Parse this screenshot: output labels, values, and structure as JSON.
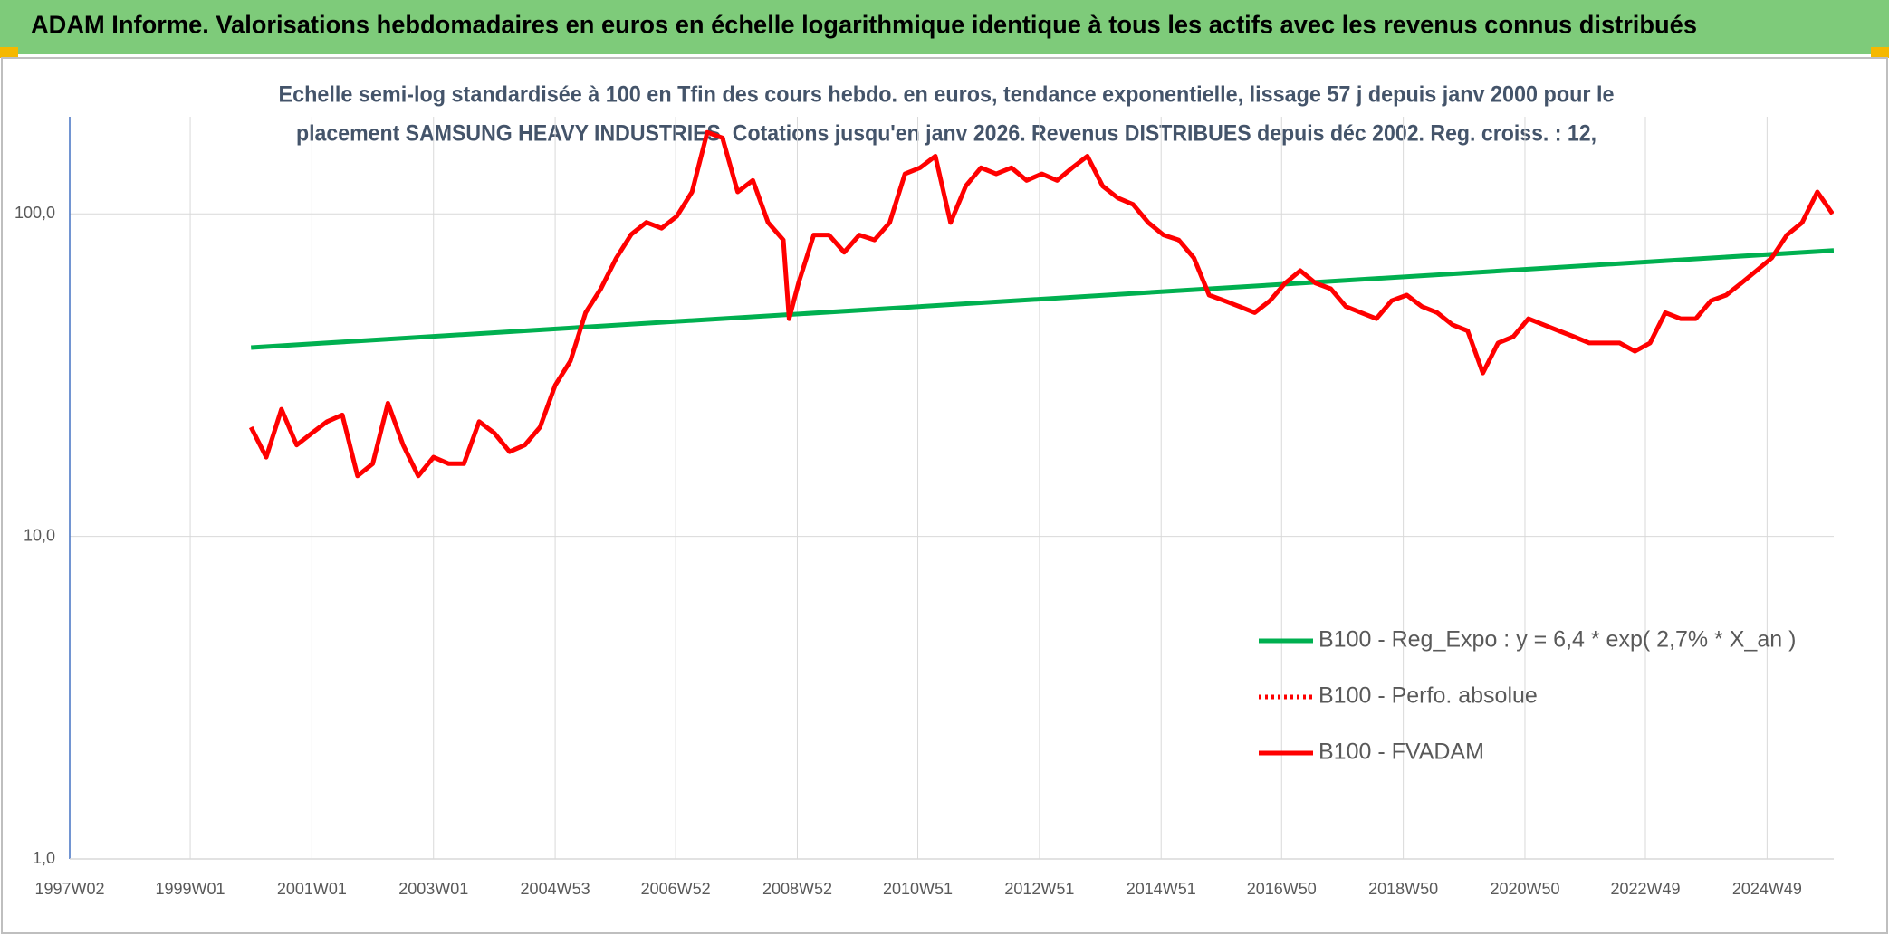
{
  "chart_data": {
    "type": "line",
    "title": "ADAM Informe. Valorisations hebdomadaires en euros en échelle logarithmique identique à tous les actifs avec les revenus connus distribués",
    "subtitle_lines": [
      "Echelle semi-log standardisée à 100 en Tfin des cours hebdo. en euros, tendance exponentielle, lissage 57 j depuis janv 2000 pour le",
      "placement SAMSUNG HEAVY INDUSTRIES. Cotations jusqu'en janv 2026. Revenus DISTRIBUES depuis déc 2002. Reg. croiss. : 12,"
    ],
    "log_scale": true,
    "grid": true,
    "legend": "lower right",
    "ylim": [
      1,
      200
    ],
    "yticks": [
      {
        "value": 1,
        "label": "1,0"
      },
      {
        "value": 10,
        "label": "10,0"
      },
      {
        "value": 100,
        "label": "100,0"
      }
    ],
    "xlim": [
      "1997W02",
      "2026W02"
    ],
    "xticks": [
      "1997W02",
      "1999W01",
      "2001W01",
      "2003W01",
      "2004W53",
      "2006W52",
      "2008W52",
      "2010W51",
      "2012W51",
      "2014W51",
      "2016W50",
      "2018W50",
      "2020W50",
      "2022W49",
      "2024W49"
    ],
    "series": [
      {
        "name": "B100 - Reg_Expo : y = 6,4 * exp( 2,7% *  X_an )",
        "color": "#00b050",
        "style": "solid",
        "x": [
          "2000W01",
          "2026W02"
        ],
        "values": [
          38.5,
          77
        ]
      },
      {
        "name": "B100 - Perfo. absolue",
        "color": "#ff0000",
        "style": "dotted"
      },
      {
        "name": "B100 - FVADAM",
        "color": "#ff0000",
        "style": "solid",
        "x": [
          "2000W01",
          "2000W14",
          "2000W27",
          "2000W40",
          "2001W01",
          "2001W14",
          "2001W27",
          "2001W40",
          "2002W01",
          "2002W14",
          "2002W27",
          "2002W40",
          "2003W01",
          "2003W14",
          "2003W27",
          "2003W40",
          "2004W01",
          "2004W14",
          "2004W27",
          "2004W40",
          "2005W01",
          "2005W14",
          "2005W27",
          "2005W40",
          "2006W01",
          "2006W14",
          "2006W27",
          "2006W40",
          "2007W01",
          "2007W14",
          "2007W27",
          "2007W40",
          "2008W01",
          "2008W14",
          "2008W27",
          "2008W40",
          "2008W45",
          "2009W01",
          "2009W14",
          "2009W27",
          "2009W40",
          "2010W01",
          "2010W14",
          "2010W27",
          "2010W40",
          "2011W01",
          "2011W14",
          "2011W27",
          "2011W40",
          "2012W01",
          "2012W14",
          "2012W27",
          "2012W40",
          "2013W01",
          "2013W14",
          "2013W27",
          "2013W40",
          "2014W01",
          "2014W14",
          "2014W27",
          "2014W40",
          "2015W01",
          "2015W14",
          "2015W27",
          "2015W40",
          "2016W01",
          "2016W14",
          "2016W27",
          "2016W40",
          "2017W01",
          "2017W14",
          "2017W27",
          "2017W40",
          "2018W01",
          "2018W14",
          "2018W27",
          "2018W40",
          "2019W01",
          "2019W14",
          "2019W27",
          "2019W40",
          "2020W01",
          "2020W14",
          "2020W27",
          "2020W40",
          "2021W01",
          "2021W14",
          "2021W27",
          "2021W40",
          "2022W01",
          "2022W14",
          "2022W27",
          "2022W40",
          "2023W01",
          "2023W14",
          "2023W27",
          "2023W40",
          "2024W01",
          "2024W14",
          "2024W27",
          "2024W40",
          "2025W01",
          "2025W14",
          "2025W27",
          "2025W40",
          "2026W01"
        ],
        "values": [
          21.8,
          17.6,
          24.8,
          19.2,
          20.9,
          22.7,
          23.8,
          15.4,
          16.8,
          25.9,
          19.2,
          15.4,
          17.6,
          16.8,
          16.8,
          22.7,
          20.9,
          18.3,
          19.2,
          21.8,
          29.4,
          35,
          49.4,
          58.6,
          72.7,
          86.4,
          94.1,
          90.2,
          98.3,
          117,
          179,
          172,
          117,
          127,
          94,
          83,
          47.3,
          61,
          86,
          86,
          76,
          86,
          83,
          94,
          133,
          139,
          151,
          94,
          122,
          139,
          133,
          139,
          127,
          133,
          127,
          139,
          151,
          122,
          112,
          107,
          94,
          86,
          83,
          73,
          56,
          53.8,
          51.6,
          49.4,
          53.8,
          61,
          66.7,
          61,
          58.6,
          51.6,
          49.4,
          47.3,
          53.8,
          56,
          51.6,
          49.4,
          45.3,
          43.4,
          32.1,
          39.8,
          41.6,
          47.3,
          45.3,
          43.4,
          41.6,
          39.8,
          39.8,
          39.8,
          37.5,
          39.8,
          49.4,
          47.3,
          47.3,
          53.8,
          56,
          61,
          66.7,
          73,
          86,
          94,
          117,
          100
        ]
      }
    ]
  }
}
